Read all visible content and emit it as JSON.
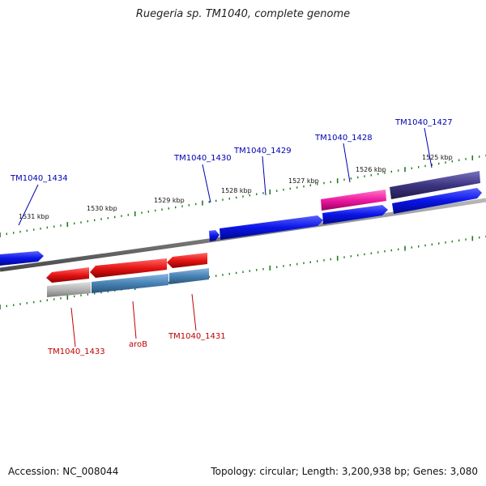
{
  "title": "Ruegeria sp. TM1040, complete genome",
  "accession": "Accession: NC_008044",
  "topology": "Topology: circular; Length: 3,200,938 bp; Genes: 3,080",
  "scale_labels": [
    "1531 kbp",
    "1530 kbp",
    "1529 kbp",
    "1528 kbp",
    "1527 kbp",
    "1526 kbp",
    "1525 kbp"
  ],
  "forward_labels": [
    "TM1040_1434",
    "TM1040_1430",
    "TM1040_1429",
    "TM1040_1428",
    "TM1040_1427"
  ],
  "reverse_labels": [
    "TM1040_1433",
    "aroB",
    "TM1040_1431"
  ],
  "colors": {
    "forward_label": "#0000b0",
    "reverse_label": "#c00000",
    "forward_gene": "#0a14e6",
    "reverse_gene": "#e61414",
    "ruler_tick": "#1f7a1f",
    "backbone": "#808080"
  }
}
